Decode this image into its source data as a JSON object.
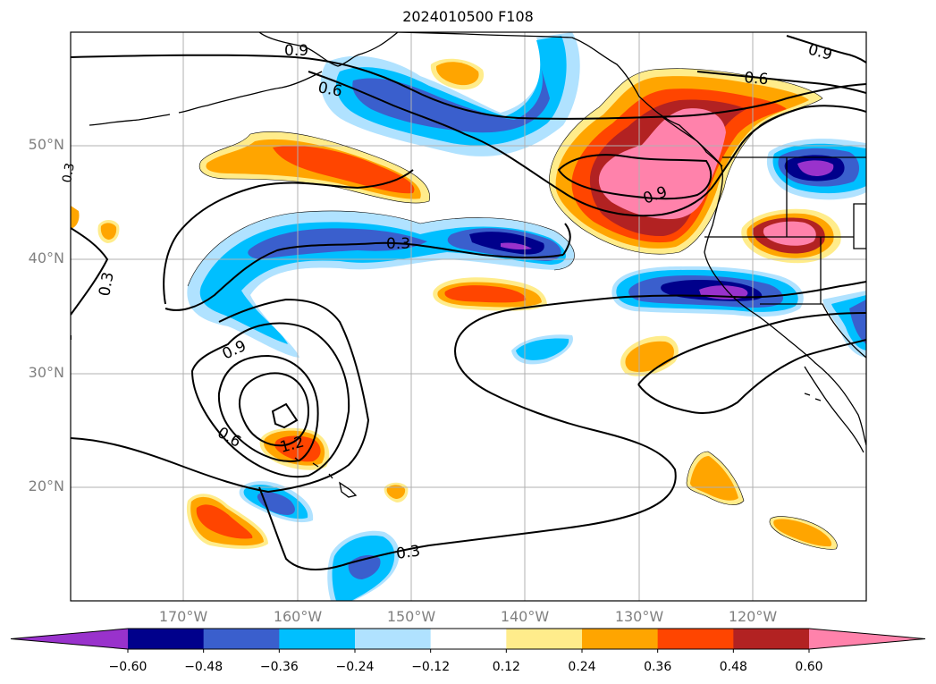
{
  "title": "2024010500 F108",
  "lon_labels": [
    "170°W",
    "160°W",
    "150°W",
    "140°W",
    "130°W",
    "120°W"
  ],
  "lat_labels": [
    "50°N",
    "40°N",
    "30°N",
    "20°N"
  ],
  "contour_labels": [
    "0.9",
    "0.6",
    "0.6",
    "0.9",
    "0.3",
    "0.3",
    "0.9",
    "0.6",
    "1.2",
    "0.3",
    "0.9",
    "0.3"
  ],
  "colorbar": {
    "ticks": [
      "−0.60",
      "−0.48",
      "−0.36",
      "−0.24",
      "−0.12",
      "0.12",
      "0.24",
      "0.36",
      "0.48",
      "0.60"
    ],
    "colors": [
      "#9932cc",
      "#00008b",
      "#3a5fcd",
      "#00bfff",
      "#b0e2ff",
      "#ffffff",
      "#ffec8b",
      "#ffa500",
      "#ff4500",
      "#b22222",
      "#ff82ab"
    ]
  },
  "colors": {
    "purple": "#9932cc",
    "navy": "#00008b",
    "royal": "#3a5fcd",
    "sky": "#00bfff",
    "pale_blue": "#b0e2ff",
    "pale_yellow": "#ffec8b",
    "orange": "#ffa500",
    "orange_red": "#ff4500",
    "firebrick": "#b22222",
    "pink": "#ff82ab"
  }
}
